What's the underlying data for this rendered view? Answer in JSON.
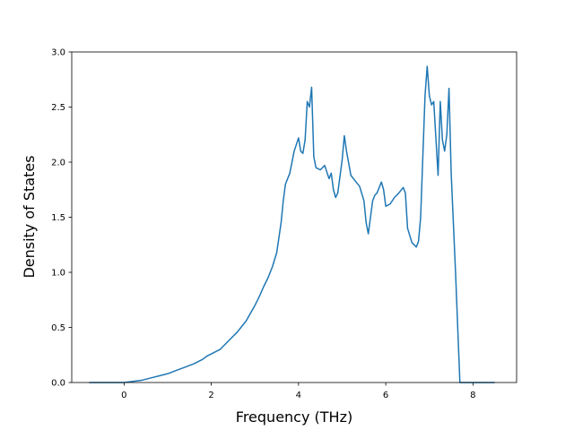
{
  "chart_data": {
    "type": "line",
    "title": "",
    "xlabel": "Frequency (THz)",
    "ylabel": "Density of States",
    "xlim": [
      -1.2,
      9.0
    ],
    "ylim": [
      0.0,
      3.0
    ],
    "xticks": [
      0,
      2,
      4,
      6,
      8
    ],
    "xtick_labels": [
      "0",
      "2",
      "4",
      "6",
      "8"
    ],
    "yticks": [
      0.0,
      0.5,
      1.0,
      1.5,
      2.0,
      2.5,
      3.0
    ],
    "ytick_labels": [
      "0.0",
      "0.5",
      "1.0",
      "1.5",
      "2.0",
      "2.5",
      "3.0"
    ],
    "grid": false,
    "line_color": "#1f77b4",
    "series": [
      {
        "x": [
          -0.8,
          -0.4,
          0.0,
          0.2,
          0.4,
          0.6,
          0.8,
          1.0,
          1.2,
          1.4,
          1.6,
          1.8,
          1.9,
          2.0,
          2.2,
          2.4,
          2.6,
          2.7,
          2.8,
          3.0,
          3.1,
          3.2,
          3.3,
          3.4,
          3.5,
          3.6,
          3.65,
          3.7,
          3.75,
          3.8,
          3.9,
          4.0,
          4.05,
          4.1,
          4.15,
          4.2,
          4.25,
          4.3,
          4.35,
          4.4,
          4.5,
          4.6,
          4.7,
          4.75,
          4.8,
          4.85,
          4.9,
          5.0,
          5.05,
          5.1,
          5.2,
          5.3,
          5.4,
          5.5,
          5.55,
          5.6,
          5.7,
          5.75,
          5.8,
          5.9,
          5.95,
          6.0,
          6.1,
          6.2,
          6.3,
          6.4,
          6.45,
          6.5,
          6.6,
          6.7,
          6.75,
          6.8,
          6.9,
          6.95,
          7.0,
          7.05,
          7.1,
          7.2,
          7.25,
          7.3,
          7.35,
          7.4,
          7.45,
          7.5,
          7.6,
          7.7,
          7.8,
          8.0,
          8.5
        ],
        "y": [
          0.0,
          0.0,
          0.0,
          0.01,
          0.02,
          0.04,
          0.06,
          0.08,
          0.11,
          0.14,
          0.17,
          0.21,
          0.24,
          0.26,
          0.3,
          0.38,
          0.46,
          0.51,
          0.56,
          0.7,
          0.78,
          0.87,
          0.95,
          1.05,
          1.18,
          1.45,
          1.65,
          1.8,
          1.85,
          1.9,
          2.1,
          2.22,
          2.1,
          2.08,
          2.2,
          2.55,
          2.5,
          2.68,
          2.05,
          1.95,
          1.93,
          1.97,
          1.85,
          1.9,
          1.75,
          1.68,
          1.72,
          2.02,
          2.24,
          2.1,
          1.88,
          1.83,
          1.78,
          1.65,
          1.45,
          1.35,
          1.65,
          1.7,
          1.72,
          1.82,
          1.75,
          1.6,
          1.62,
          1.68,
          1.72,
          1.77,
          1.72,
          1.4,
          1.27,
          1.23,
          1.28,
          1.5,
          2.6,
          2.87,
          2.6,
          2.52,
          2.55,
          1.88,
          2.55,
          2.2,
          2.1,
          2.25,
          2.67,
          1.9,
          1.0,
          0.0,
          0.0,
          0.0,
          0.0
        ]
      }
    ]
  }
}
